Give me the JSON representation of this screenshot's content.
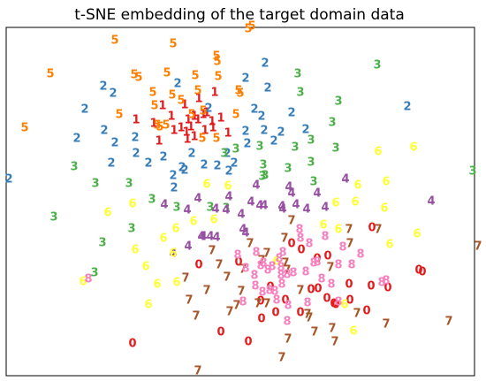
{
  "chart_data": {
    "type": "scatter",
    "title": "t-SNE embedding of the target domain data",
    "xlabel": "",
    "ylabel": "",
    "grid": false,
    "legend": "none",
    "xlim": [
      0,
      550
    ],
    "ylim": [
      0,
      431
    ],
    "marker": "class digit label",
    "colors": {
      "0": "#e41a1c",
      "1": "#e41a1c",
      "2": "#377eb8",
      "3": "#4daf4a",
      "4": "#984ea3",
      "5": "#ff7f00",
      "6": "#ffff33",
      "7": "#a65628",
      "8": "#f781bf"
    },
    "series": [
      {
        "label": "0",
        "points": [
          [
            150,
            389
          ],
          [
            250,
            376
          ],
          [
            281,
            387
          ],
          [
            225,
            300
          ],
          [
            270,
            297
          ],
          [
            295,
            341
          ],
          [
            312,
            354
          ],
          [
            340,
            354
          ],
          [
            323,
            340
          ],
          [
            352,
            328
          ],
          [
            360,
            327
          ],
          [
            370,
            338
          ],
          [
            378,
            344
          ],
          [
            380,
            345
          ],
          [
            395,
            322
          ],
          [
            396,
            340
          ],
          [
            420,
            324
          ],
          [
            415,
            352
          ],
          [
            439,
            326
          ],
          [
            474,
            306
          ],
          [
            478,
            308
          ],
          [
            341,
            283
          ],
          [
            359,
            293
          ],
          [
            371,
            290
          ],
          [
            421,
            258
          ],
          [
            296,
            361
          ],
          [
            306,
            325
          ],
          [
            330,
            276
          ]
        ]
      },
      {
        "label": "1",
        "points": [
          [
            154,
            136
          ],
          [
            194,
            132
          ],
          [
            197,
            148
          ],
          [
            209,
            119
          ],
          [
            213,
            136
          ],
          [
            220,
            132
          ],
          [
            216,
            144
          ],
          [
            205,
            145
          ],
          [
            212,
            158
          ],
          [
            224,
            136
          ],
          [
            230,
            130
          ],
          [
            234,
            128
          ],
          [
            240,
            138
          ],
          [
            243,
            105
          ],
          [
            250,
            134
          ],
          [
            258,
            151
          ],
          [
            232,
            148
          ],
          [
            241,
            145
          ],
          [
            220,
            155
          ],
          [
            180,
            160
          ],
          [
            174,
            140
          ],
          [
            184,
            120
          ],
          [
            225,
            112
          ],
          [
            211,
            150
          ]
        ]
      },
      {
        "label": "2",
        "points": [
          [
            10,
            203
          ],
          [
            96,
            124
          ],
          [
            117,
            98
          ],
          [
            128,
            106
          ],
          [
            87,
            157
          ],
          [
            118,
            148
          ],
          [
            130,
            162
          ],
          [
            126,
            185
          ],
          [
            153,
            156
          ],
          [
            154,
            174
          ],
          [
            168,
            185
          ],
          [
            185,
            178
          ],
          [
            196,
            199
          ],
          [
            197,
            213
          ],
          [
            206,
            190
          ],
          [
            217,
            174
          ],
          [
            209,
            193
          ],
          [
            231,
            187
          ],
          [
            246,
            188
          ],
          [
            259,
            194
          ],
          [
            265,
            185
          ],
          [
            280,
            163
          ],
          [
            278,
            149
          ],
          [
            299,
            148
          ],
          [
            310,
            160
          ],
          [
            318,
            150
          ],
          [
            330,
            128
          ],
          [
            346,
            147
          ],
          [
            296,
            132
          ],
          [
            288,
            124
          ],
          [
            303,
            100
          ],
          [
            300,
            72
          ],
          [
            278,
            89
          ],
          [
            201,
            95
          ],
          [
            461,
            121
          ],
          [
            236,
            123
          ],
          [
            257,
            174
          ]
        ]
      },
      {
        "label": "3",
        "points": [
          [
            61,
            246
          ],
          [
            84,
            189
          ],
          [
            108,
            208
          ],
          [
            116,
            275
          ],
          [
            107,
            309
          ],
          [
            146,
            208
          ],
          [
            149,
            259
          ],
          [
            172,
            226
          ],
          [
            200,
            235
          ],
          [
            238,
            235
          ],
          [
            256,
            236
          ],
          [
            254,
            174
          ],
          [
            267,
            169
          ],
          [
            294,
            166
          ],
          [
            298,
            187
          ],
          [
            300,
            199
          ],
          [
            326,
            191
          ],
          [
            334,
            167
          ],
          [
            352,
            159
          ],
          [
            352,
            184
          ],
          [
            380,
            168
          ],
          [
            376,
            139
          ],
          [
            383,
            115
          ],
          [
            340,
            105
          ],
          [
            337,
            84
          ],
          [
            427,
            74
          ],
          [
            535,
            194
          ],
          [
            297,
            200
          ],
          [
            355,
            206
          ]
        ]
      },
      {
        "label": "4",
        "points": [
          [
            186,
            232
          ],
          [
            196,
            287
          ],
          [
            212,
            238
          ],
          [
            224,
            225
          ],
          [
            213,
            279
          ],
          [
            228,
            268
          ],
          [
            245,
            269
          ],
          [
            244,
            237
          ],
          [
            259,
            223
          ],
          [
            256,
            238
          ],
          [
            273,
            243
          ],
          [
            284,
            229
          ],
          [
            294,
            233
          ],
          [
            299,
            233
          ],
          [
            319,
            234
          ],
          [
            330,
            219
          ],
          [
            327,
            212
          ],
          [
            335,
            232
          ],
          [
            347,
            237
          ],
          [
            359,
            219
          ],
          [
            368,
            235
          ],
          [
            391,
            203
          ],
          [
            488,
            228
          ],
          [
            230,
            268
          ],
          [
            238,
            268
          ],
          [
            275,
            260
          ],
          [
            278,
            264
          ],
          [
            290,
            210
          ],
          [
            320,
            237
          ]
        ]
      },
      {
        "label": "5",
        "points": [
          [
            28,
            145
          ],
          [
            57,
            84
          ],
          [
            130,
            46
          ],
          [
            135,
            130
          ],
          [
            152,
            85
          ],
          [
            157,
            88
          ],
          [
            173,
            105
          ],
          [
            175,
            120
          ],
          [
            178,
            142
          ],
          [
            181,
            144
          ],
          [
            189,
            83
          ],
          [
            196,
            50
          ],
          [
            195,
            108
          ],
          [
            205,
            114
          ],
          [
            217,
            130
          ],
          [
            221,
            86
          ],
          [
            245,
            64
          ],
          [
            246,
            70
          ],
          [
            224,
            103
          ],
          [
            229,
            157
          ],
          [
            247,
            87
          ],
          [
            245,
            157
          ],
          [
            267,
            130
          ],
          [
            272,
            106
          ],
          [
            285,
            30
          ],
          [
            281,
            33
          ],
          [
            188,
            142
          ],
          [
            270,
            103
          ],
          [
            230,
            126
          ]
        ]
      },
      {
        "label": "6",
        "points": [
          [
            94,
            319
          ],
          [
            122,
            241
          ],
          [
            150,
            231
          ],
          [
            153,
            283
          ],
          [
            165,
            302
          ],
          [
            178,
            322
          ],
          [
            168,
            345
          ],
          [
            185,
            270
          ],
          [
            196,
            287
          ],
          [
            199,
            259
          ],
          [
            219,
            251
          ],
          [
            234,
            209
          ],
          [
            242,
            249
          ],
          [
            258,
            211
          ],
          [
            366,
            255
          ],
          [
            380,
            230
          ],
          [
            402,
            229
          ],
          [
            428,
            172
          ],
          [
            437,
            206
          ],
          [
            435,
            236
          ],
          [
            441,
            277
          ],
          [
            468,
            167
          ],
          [
            472,
            265
          ],
          [
            400,
            375
          ],
          [
            390,
            345
          ],
          [
            313,
            296
          ],
          [
            383,
            260
          ],
          [
            405,
            210
          ],
          [
            200,
            320
          ]
        ]
      },
      {
        "label": "7",
        "points": [
          [
            210,
            315
          ],
          [
            214,
            340
          ],
          [
            222,
            358
          ],
          [
            224,
            420
          ],
          [
            234,
            329
          ],
          [
            240,
            284
          ],
          [
            248,
            300
          ],
          [
            257,
            314
          ],
          [
            260,
            353
          ],
          [
            273,
            330
          ],
          [
            275,
            305
          ],
          [
            283,
            276
          ],
          [
            296,
            295
          ],
          [
            302,
            287
          ],
          [
            302,
            344
          ],
          [
            322,
            270
          ],
          [
            323,
            298
          ],
          [
            325,
            306
          ],
          [
            330,
            250
          ],
          [
            340,
            329
          ],
          [
            348,
            356
          ],
          [
            350,
            360
          ],
          [
            356,
            376
          ],
          [
            374,
            303
          ],
          [
            379,
            387
          ],
          [
            395,
            260
          ],
          [
            396,
            276
          ],
          [
            404,
            355
          ],
          [
            428,
            260
          ],
          [
            437,
            367
          ],
          [
            508,
            364
          ],
          [
            541,
            279
          ],
          [
            319,
            405
          ],
          [
            326,
            384
          ],
          [
            268,
            346
          ],
          [
            376,
            372
          ],
          [
            292,
            344
          ]
        ]
      },
      {
        "label": "8",
        "points": [
          [
            100,
            316
          ],
          [
            269,
            289
          ],
          [
            278,
            304
          ],
          [
            288,
            312
          ],
          [
            289,
            324
          ],
          [
            290,
            286
          ],
          [
            295,
            301
          ],
          [
            298,
            298
          ],
          [
            308,
            302
          ],
          [
            305,
            329
          ],
          [
            311,
            330
          ],
          [
            316,
            293
          ],
          [
            318,
            303
          ],
          [
            318,
            312
          ],
          [
            319,
            322
          ],
          [
            320,
            286
          ],
          [
            325,
            311
          ],
          [
            332,
            309
          ],
          [
            339,
            260
          ],
          [
            340,
            270
          ],
          [
            346,
            308
          ],
          [
            350,
            276
          ],
          [
            355,
            298
          ],
          [
            359,
            297
          ],
          [
            364,
            316
          ],
          [
            368,
            268
          ],
          [
            375,
            322
          ],
          [
            383,
            300
          ],
          [
            388,
            280
          ],
          [
            398,
            300
          ],
          [
            408,
            288
          ],
          [
            326,
            346
          ],
          [
            325,
            364
          ],
          [
            348,
            343
          ],
          [
            383,
            342
          ],
          [
            432,
            320
          ],
          [
            437,
            318
          ],
          [
            275,
            342
          ],
          [
            303,
            306
          ],
          [
            313,
            340
          ],
          [
            297,
            331
          ]
        ]
      }
    ]
  }
}
